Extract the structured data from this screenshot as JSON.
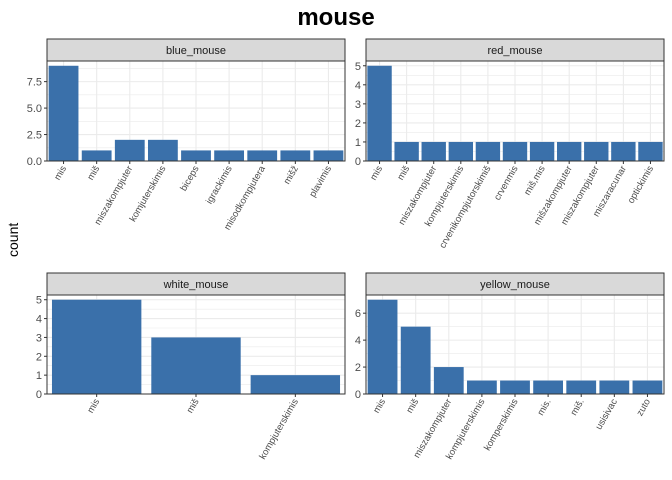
{
  "title": "mouse",
  "ylabel": "count",
  "colors": {
    "bar": "#3a70aa",
    "strip_bg": "#d9d9d9",
    "strip_border": "#333333",
    "grid": "#ebebeb",
    "panel_border": "#333333"
  },
  "chart_data": [
    {
      "type": "bar",
      "facet": "blue_mouse",
      "categories": [
        "mis",
        "miš",
        "miszakompjuter",
        "komjuterskimis",
        "biceps",
        "igrackimis",
        "misodkompjutera",
        "mišž",
        "plavimis"
      ],
      "values": [
        9,
        1,
        2,
        2,
        1,
        1,
        1,
        1,
        1
      ],
      "ylim": [
        0,
        9.45
      ],
      "yticks": [
        0.0,
        2.5,
        5.0,
        7.5
      ],
      "ytick_labels": [
        "0.0",
        "2.5",
        "5.0",
        "7.5"
      ],
      "grid": true
    },
    {
      "type": "bar",
      "facet": "red_mouse",
      "categories": [
        "mis",
        "miš",
        "miszakompjuter",
        "kompjuterskimis",
        "crvenikompjutorskimiš",
        "crvenmis",
        "miš,mis",
        "mišzakompjuter",
        "miszakompjuter",
        "miszaracunar",
        "optickimis"
      ],
      "values": [
        5,
        1,
        1,
        1,
        1,
        1,
        1,
        1,
        1,
        1,
        1
      ],
      "ylim": [
        0,
        5.25
      ],
      "yticks": [
        0,
        1,
        2,
        3,
        4,
        5
      ],
      "ytick_labels": [
        "0",
        "1",
        "2",
        "3",
        "4",
        "5"
      ],
      "grid": true
    },
    {
      "type": "bar",
      "facet": "white_mouse",
      "categories": [
        "mis",
        "miš",
        "kompjuterskimis"
      ],
      "values": [
        5,
        3,
        1
      ],
      "ylim": [
        0,
        5.25
      ],
      "yticks": [
        0,
        1,
        2,
        3,
        4,
        5
      ],
      "ytick_labels": [
        "0",
        "1",
        "2",
        "3",
        "4",
        "5"
      ],
      "grid": true
    },
    {
      "type": "bar",
      "facet": "yellow_mouse",
      "categories": [
        "mis",
        "miš",
        "miszakompjuter",
        "kompjuterskimis",
        "komperskimis",
        "mis.",
        "miš.",
        "usisivac",
        "zuto"
      ],
      "values": [
        7,
        5,
        2,
        1,
        1,
        1,
        1,
        1,
        1
      ],
      "ylim": [
        0,
        7.35
      ],
      "yticks": [
        0,
        2,
        4,
        6
      ],
      "ytick_labels": [
        "0",
        "2",
        "4",
        "6"
      ],
      "grid": true
    }
  ]
}
